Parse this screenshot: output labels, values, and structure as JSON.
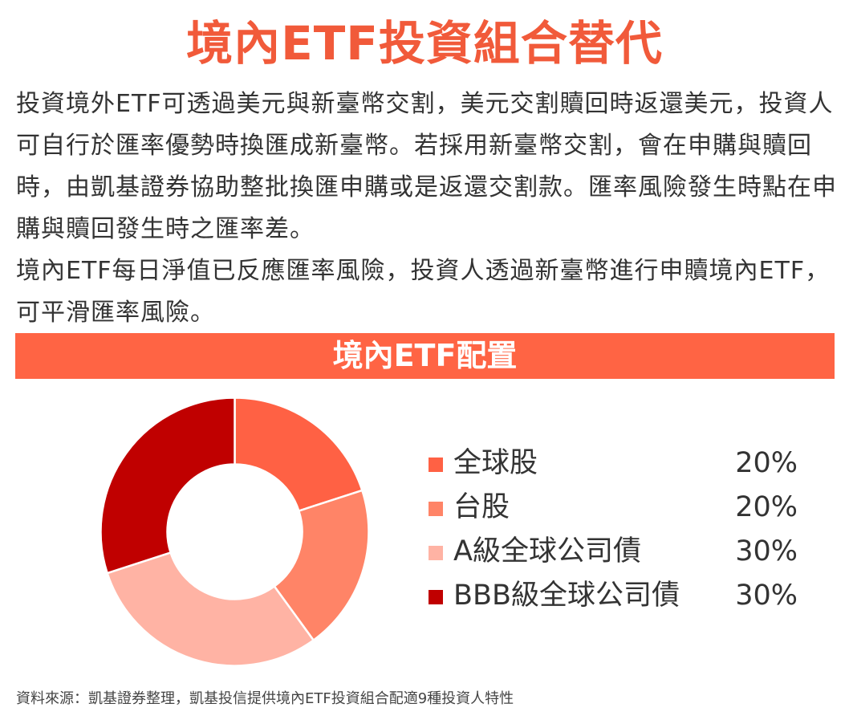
{
  "header": {
    "title": "境內ETF投資組合替代"
  },
  "description": {
    "paragraph1": "投資境外ETF可透過美元與新臺幣交割，美元交割贖回時返還美元，投資人可自行於匯率優勢時換匯成新臺幣。若採用新臺幣交割，會在申購與贖回時，由凱基證券協助整批換匯申購或是返還交割款。匯率風險發生時點在申購與贖回發生時之匯率差。",
    "paragraph2": "境內ETF每日淨值已反應匯率風險，投資人透過新臺幣進行申贖境內ETF，可平滑匯率風險。"
  },
  "banner": {
    "label": "境內ETF配置"
  },
  "chart_data": {
    "type": "pie",
    "title": "境內ETF配置",
    "hole": true,
    "legend_position": "right",
    "categories": [
      "全球股",
      "台股",
      "A級全球公司債",
      "BBB級全球公司債"
    ],
    "values": [
      20,
      20,
      30,
      30
    ],
    "value_labels": [
      "20%",
      "20%",
      "30%",
      "30%"
    ],
    "colors": [
      "#ff6144",
      "#ff8467",
      "#ffb3a4",
      "#c00000"
    ]
  },
  "footer": {
    "source": "資料來源：凱基證券整理，凱基投信提供境內ETF投資組合配適9種投資人特性"
  }
}
